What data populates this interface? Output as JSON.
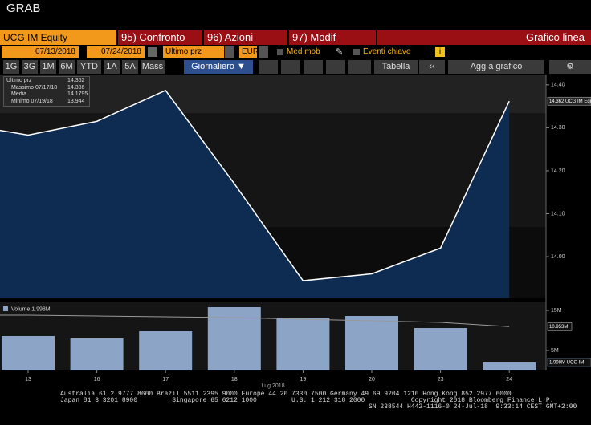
{
  "window_title": "GRAB",
  "toolbar": {
    "security": "UCG IM Equity",
    "compare": "95) Confronto",
    "actions": "96) Azioni",
    "edit": "97) Modif",
    "chart_type": "Grafico linea"
  },
  "controls": {
    "start_date": "07/13/2018",
    "end_date": "07/24/2018",
    "field": "Ultimo prz",
    "currency": "EUR",
    "moving_avg": "Med mob",
    "key_events": "Eventi chiave"
  },
  "periods": [
    "1G",
    "3G",
    "1M",
    "6M",
    "YTD",
    "1A",
    "5A",
    "Mass"
  ],
  "frequency": "Giornaliero ▼",
  "table": "Tabella",
  "add_to_chart": "Agg a grafico",
  "price_chart": {
    "type": "area",
    "legend": [
      {
        "name": "Ultimo prz",
        "value": "14.362"
      },
      {
        "name": "Massimo 07/17/18",
        "value": "14.386"
      },
      {
        "name": "Media",
        "value": "14.1795"
      },
      {
        "name": "Minimo 07/19/18",
        "value": "13.944"
      }
    ],
    "values": [
      14.31,
      14.283,
      14.315,
      14.387,
      14.17,
      13.944,
      13.96,
      14.02,
      14.362
    ],
    "color": "#ffffff",
    "fill": "#0e2b52",
    "ylim": [
      13.903,
      14.424
    ],
    "yticks": [
      {
        "value": 14.0,
        "label": "14.00"
      },
      {
        "value": 14.1,
        "label": "14.10"
      },
      {
        "value": 14.2,
        "label": "14.20"
      },
      {
        "value": 14.3,
        "label": "14.30"
      },
      {
        "value": 14.4,
        "label": "14.40"
      }
    ],
    "last_label": "14.362 UCG IM Equity"
  },
  "volume_chart": {
    "type": "bar",
    "legend": "Volume 1.998M",
    "categories": [
      "13",
      "16",
      "17",
      "18",
      "19",
      "20",
      "23",
      "24"
    ],
    "values": [
      8.6,
      8.0,
      9.8,
      15.8,
      13.2,
      13.6,
      10.6,
      1.998
    ],
    "color": "#8ca4c6",
    "average": {
      "values": [
        13.8,
        13.6,
        13.4,
        13.2,
        12.8,
        12.4,
        12.0,
        10.953
      ],
      "color": "#9a9a9a"
    },
    "ylim": [
      0,
      17
    ],
    "yticks": [
      {
        "value": 5,
        "label": "5M"
      },
      {
        "value": 15,
        "label": "15M"
      }
    ],
    "average_label": "10.953M",
    "last_label": "1.998M UCG IM",
    "x_axis_label": "Lug 2018"
  },
  "footer": [
    "Australia 61 2 9777 8600 Brazil 5511 2395 9000 Europe 44 20 7330 7500 Germany 49 69 9204 1210 Hong Kong 852 2977 6000",
    "Japan 81 3 3201 8900         Singapore 65 6212 1000         U.S. 1 212 318 2000            Copyright 2018 Bloomberg Finance L.P.",
    "SN 238544 H442-1116-0 24-Jul-18  9:33:14 CEST GMT+2:00"
  ]
}
